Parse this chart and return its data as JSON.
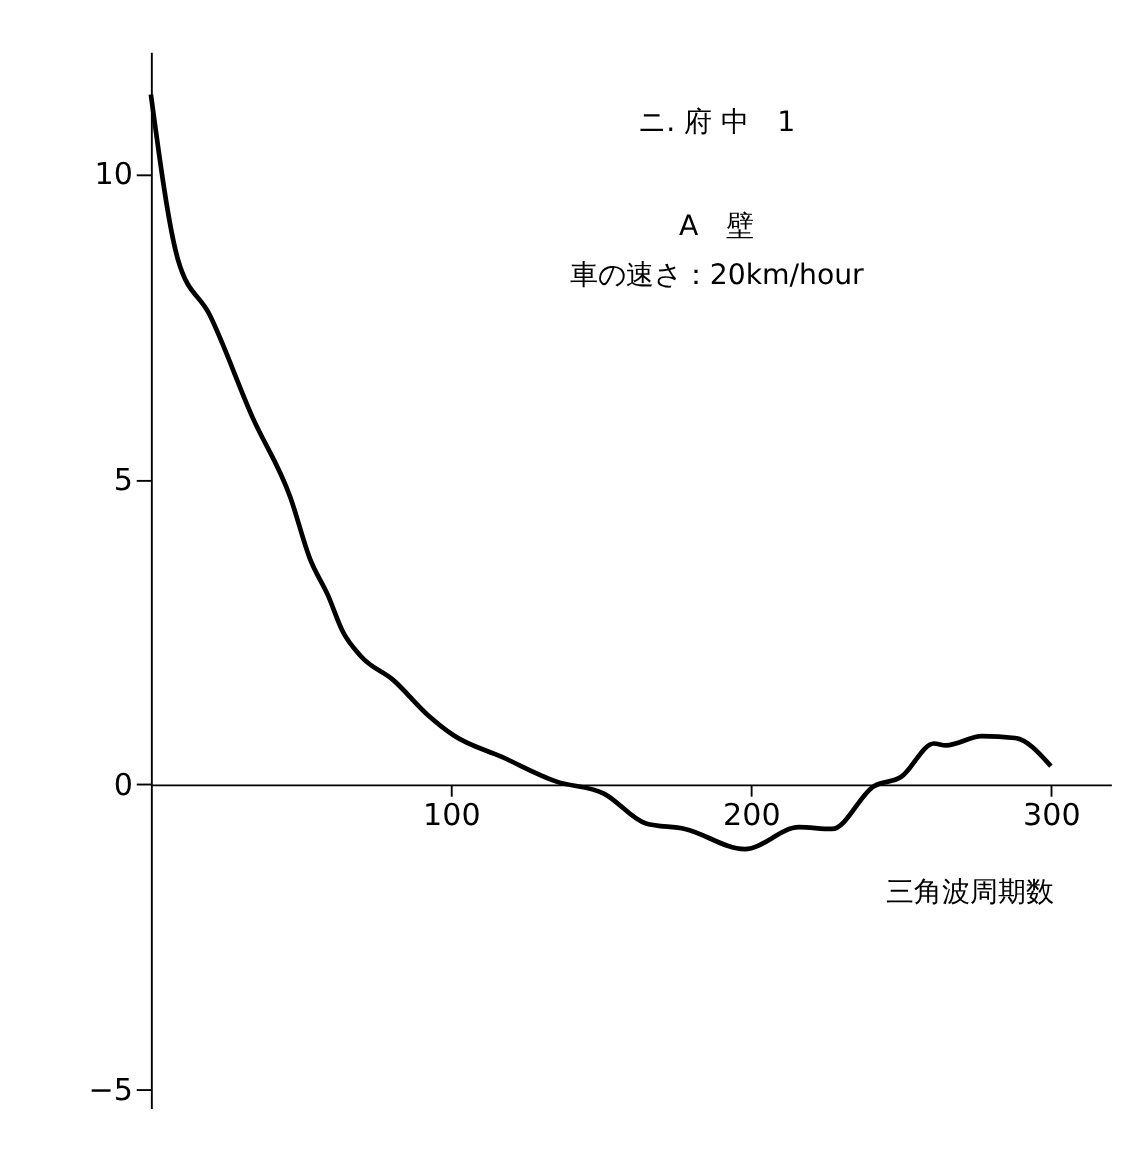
{
  "chart_data": {
    "type": "line",
    "title": "ニ. 府 中　1",
    "annotations": [
      "A　壁",
      "車の速さ：20km/hour"
    ],
    "xlabel": "三角波周期数",
    "x": [
      0,
      9,
      19.5,
      34,
      46.5,
      53,
      59,
      64,
      70,
      81,
      92,
      101,
      117,
      135,
      151,
      165,
      178,
      198,
      216,
      227,
      241,
      250,
      261,
      265,
      277,
      288,
      300
    ],
    "series": [
      {
        "color": "#000000",
        "values": [
          11.3,
          8.6,
          7.7,
          6.0,
          4.7,
          3.7,
          3.1,
          2.5,
          2.1,
          1.7,
          1.15,
          0.8,
          0.45,
          0.05,
          -0.15,
          -0.64,
          -0.73,
          -1.06,
          -0.7,
          -0.73,
          -0.03,
          0.12,
          0.67,
          0.64,
          0.79,
          0.76,
          0.3
        ]
      }
    ],
    "xlim": [
      0,
      320
    ],
    "ylim": [
      -5.3,
      12
    ],
    "xticks": [
      100,
      200,
      300
    ],
    "yticks": [
      -5,
      0,
      5,
      10
    ],
    "grid": false,
    "marker": "none",
    "line_style": "solid"
  }
}
